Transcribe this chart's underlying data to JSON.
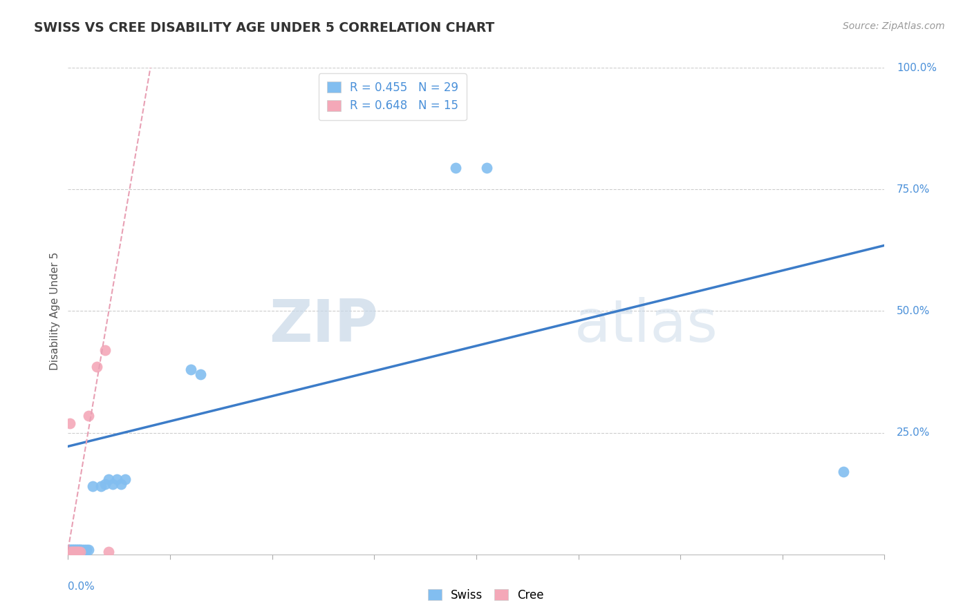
{
  "title": "SWISS VS CREE DISABILITY AGE UNDER 5 CORRELATION CHART",
  "source": "Source: ZipAtlas.com",
  "ylabel": "Disability Age Under 5",
  "xmin": 0.0,
  "xmax": 0.4,
  "ymin": 0.0,
  "ymax": 1.0,
  "swiss_R": 0.455,
  "swiss_N": 29,
  "cree_R": 0.648,
  "cree_N": 15,
  "swiss_color": "#82BEF0",
  "cree_color": "#F4A8B8",
  "swiss_line_color": "#3C7CC8",
  "cree_line_color": "#E8A0B4",
  "watermark_zip": "ZIP",
  "watermark_atlas": "atlas",
  "swiss_line_x0": 0.0,
  "swiss_line_y0": 0.222,
  "swiss_line_x1": 0.4,
  "swiss_line_y1": 0.635,
  "cree_line_x0": 0.0,
  "cree_line_y0": 0.01,
  "cree_line_x1": 0.022,
  "cree_line_y1": 0.55,
  "swiss_points_x": [
    0.001,
    0.001,
    0.002,
    0.002,
    0.003,
    0.003,
    0.004,
    0.004,
    0.005,
    0.005,
    0.006,
    0.006,
    0.007,
    0.008,
    0.009,
    0.01,
    0.012,
    0.016,
    0.018,
    0.02,
    0.022,
    0.024,
    0.026,
    0.028,
    0.06,
    0.065,
    0.19,
    0.205,
    0.38
  ],
  "swiss_points_y": [
    0.01,
    0.01,
    0.01,
    0.01,
    0.01,
    0.01,
    0.01,
    0.01,
    0.01,
    0.01,
    0.01,
    0.01,
    0.01,
    0.01,
    0.01,
    0.01,
    0.14,
    0.14,
    0.145,
    0.155,
    0.145,
    0.155,
    0.145,
    0.155,
    0.38,
    0.37,
    0.795,
    0.795,
    0.17
  ],
  "cree_points_x": [
    0.001,
    0.001,
    0.002,
    0.002,
    0.003,
    0.003,
    0.004,
    0.004,
    0.005,
    0.005,
    0.006,
    0.01,
    0.014,
    0.018,
    0.02
  ],
  "cree_points_y": [
    0.005,
    0.27,
    0.005,
    0.005,
    0.005,
    0.005,
    0.005,
    0.005,
    0.005,
    0.005,
    0.005,
    0.285,
    0.385,
    0.42,
    0.005
  ]
}
